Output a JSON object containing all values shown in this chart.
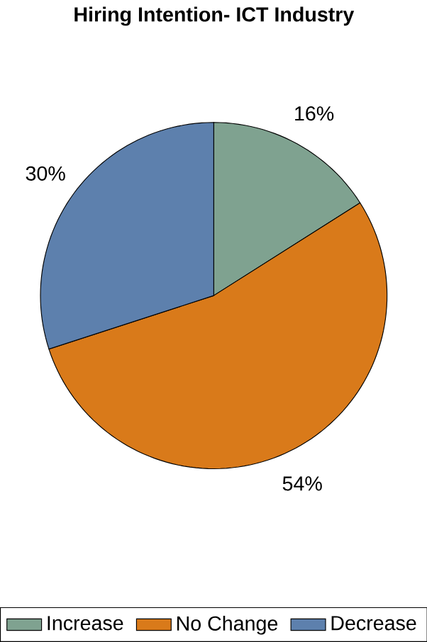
{
  "chart_data": {
    "type": "pie",
    "title": "Hiring Intention- ICT Industry",
    "categories": [
      "Increase",
      "No Change",
      "Decrease"
    ],
    "values": [
      16,
      54,
      30
    ],
    "colors": [
      "#7fa290",
      "#d97a1a",
      "#5d80ad"
    ],
    "value_labels": [
      "16%",
      "54%",
      "30%"
    ],
    "legend": "bottom"
  }
}
